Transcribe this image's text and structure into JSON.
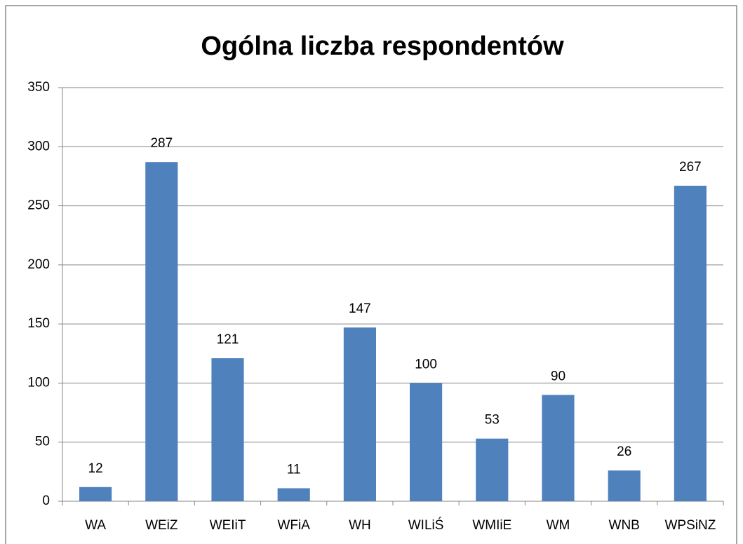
{
  "chart_data": {
    "type": "bar",
    "title": "Ogólna liczba respondentów",
    "categories": [
      "WA",
      "WEiZ",
      "WEIiT",
      "WFiA",
      "WH",
      "WILiŚ",
      "WMIiE",
      "WM",
      "WNB",
      "WPSiNZ"
    ],
    "values": [
      12,
      287,
      121,
      11,
      147,
      100,
      53,
      90,
      26,
      267
    ],
    "color": "#4f81bd",
    "ylim": [
      0,
      350
    ],
    "yticks": [
      0,
      50,
      100,
      150,
      200,
      250,
      300,
      350
    ],
    "grid": true
  }
}
